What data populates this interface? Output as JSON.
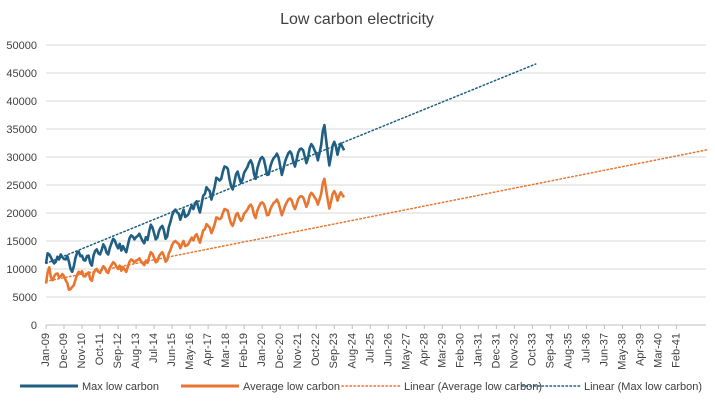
{
  "chart_data": {
    "type": "line",
    "title": "Low carbon electricity",
    "xlabel": "",
    "ylabel": "",
    "ylim": [
      0,
      50000
    ],
    "y_ticks": [
      0,
      5000,
      10000,
      15000,
      20000,
      25000,
      30000,
      35000,
      40000,
      45000,
      50000
    ],
    "x_ticks": [
      "Jan-09",
      "Dec-09",
      "Nov-10",
      "Oct-11",
      "Sep-12",
      "Aug-13",
      "Jul-14",
      "Jun-15",
      "May-16",
      "Apr-17",
      "Mar-18",
      "Feb-19",
      "Jan-20",
      "Dec-20",
      "Nov-21",
      "Oct-22",
      "Sep-23",
      "Aug-24",
      "Jul-25",
      "Jun-26",
      "May-27",
      "Apr-28",
      "Mar-29",
      "Feb-30",
      "Jan-31",
      "Dec-31",
      "Nov-32",
      "Oct-33",
      "Sep-34",
      "Aug-35",
      "Jul-36",
      "Jun-37",
      "May-38",
      "Apr-39",
      "Mar-40",
      "Feb-41"
    ],
    "grid": true,
    "legend_position": "bottom",
    "colors": {
      "max": "#1f5f82",
      "average": "#e87530"
    },
    "series": [
      {
        "name": "Max low carbon",
        "style": "solid",
        "start": "Jan-09",
        "step_months": 1,
        "values": [
          11000,
          12800,
          12600,
          12100,
          11400,
          11000,
          11300,
          12200,
          11700,
          12600,
          12100,
          11800,
          11700,
          12300,
          11300,
          10000,
          9500,
          10500,
          12000,
          12900,
          13100,
          12300,
          12400,
          11600,
          11500,
          12300,
          12400,
          11100,
          10600,
          12400,
          13200,
          13500,
          12800,
          12600,
          13400,
          14400,
          13900,
          12900,
          12600,
          13800,
          14600,
          15400,
          15100,
          14300,
          13700,
          14500,
          13300,
          14100,
          13500,
          13000,
          14300,
          15500,
          16000,
          15800,
          15300,
          15700,
          15900,
          16300,
          15600,
          15000,
          14600,
          15700,
          15200,
          16700,
          17900,
          17400,
          16400,
          15300,
          15600,
          16800,
          17400,
          17700,
          16900,
          15400,
          15800,
          17500,
          18400,
          19600,
          20300,
          20600,
          20100,
          19900,
          18800,
          19700,
          20600,
          19300,
          19500,
          19800,
          20700,
          21300,
          20700,
          21700,
          22100,
          21000,
          20100,
          21600,
          23100,
          23400,
          24600,
          24200,
          23900,
          22400,
          23500,
          24700,
          26300,
          26100,
          25800,
          26100,
          27400,
          28300,
          28200,
          27900,
          26100,
          24800,
          24200,
          25500,
          26900,
          27400,
          26300,
          25400,
          26000,
          27200,
          27700,
          28200,
          29000,
          29400,
          28700,
          27000,
          26100,
          27900,
          28900,
          29700,
          30000,
          29600,
          28300,
          26800,
          26900,
          28300,
          29200,
          29800,
          30100,
          30600,
          29900,
          28400,
          26800,
          27900,
          29200,
          30000,
          30700,
          31000,
          30500,
          29200,
          28300,
          29500,
          30800,
          31400,
          31500,
          31200,
          30100,
          28900,
          29800,
          31600,
          32300,
          31900,
          31200,
          30600,
          29400,
          30700,
          32100,
          34600,
          35700,
          33200,
          30700,
          28500,
          30100,
          32000,
          32700,
          31900,
          30400,
          31700,
          32400,
          31800,
          31200
        ]
      },
      {
        "name": "Average low carbon",
        "style": "solid",
        "start": "Jan-09",
        "step_months": 1,
        "values": [
          7400,
          9400,
          10300,
          8500,
          8000,
          8700,
          9100,
          9200,
          8500,
          8700,
          9100,
          8700,
          8000,
          7500,
          6300,
          6400,
          6800,
          7100,
          8100,
          9000,
          9500,
          9200,
          9600,
          8700,
          8700,
          9100,
          9400,
          8200,
          7900,
          9200,
          9800,
          10000,
          9500,
          9300,
          9900,
          10500,
          10200,
          9500,
          9300,
          10200,
          10700,
          11200,
          11000,
          10400,
          10000,
          10600,
          9700,
          10300,
          9900,
          9500,
          10400,
          11300,
          11700,
          11500,
          11200,
          11500,
          11600,
          11900,
          11400,
          11000,
          10700,
          11500,
          11100,
          12200,
          13000,
          12700,
          12000,
          11200,
          11400,
          12300,
          12700,
          13000,
          12400,
          11300,
          11600,
          12800,
          13400,
          14300,
          14800,
          15000,
          14700,
          14500,
          13700,
          14400,
          15000,
          14100,
          14200,
          14500,
          15100,
          15600,
          15100,
          15900,
          16200,
          15400,
          14700,
          15800,
          16900,
          17100,
          18000,
          17700,
          17400,
          16400,
          17100,
          18000,
          19200,
          19100,
          18900,
          19100,
          20000,
          20700,
          20600,
          20400,
          19100,
          18100,
          17700,
          18600,
          19700,
          20000,
          19200,
          18600,
          19000,
          19900,
          20200,
          20600,
          21200,
          21500,
          21000,
          19700,
          19100,
          20400,
          21100,
          21700,
          21900,
          21600,
          20700,
          19600,
          19700,
          20700,
          21300,
          21800,
          22000,
          22400,
          21800,
          20700,
          19600,
          20400,
          21300,
          21900,
          22400,
          22600,
          22300,
          21300,
          20700,
          21500,
          22500,
          22900,
          23000,
          22800,
          22000,
          21100,
          21800,
          23100,
          23600,
          23300,
          22800,
          22400,
          21500,
          22400,
          23400,
          25300,
          26100,
          24200,
          22400,
          20800,
          22000,
          23400,
          23900,
          23300,
          22200,
          23100,
          23700,
          23200,
          22800
        ]
      },
      {
        "name": "Linear (Average low carbon)",
        "style": "dotted",
        "trend_of": "Average low carbon",
        "start": "Jan-09",
        "end": "Sep-42",
        "values": [
          7800,
          31300
        ]
      },
      {
        "name": "Linear (Max low carbon)",
        "style": "dotted",
        "trend_of": "Max low carbon",
        "start": "Jan-09",
        "end": "Dec-33",
        "values": [
          11000,
          46600
        ]
      }
    ]
  }
}
